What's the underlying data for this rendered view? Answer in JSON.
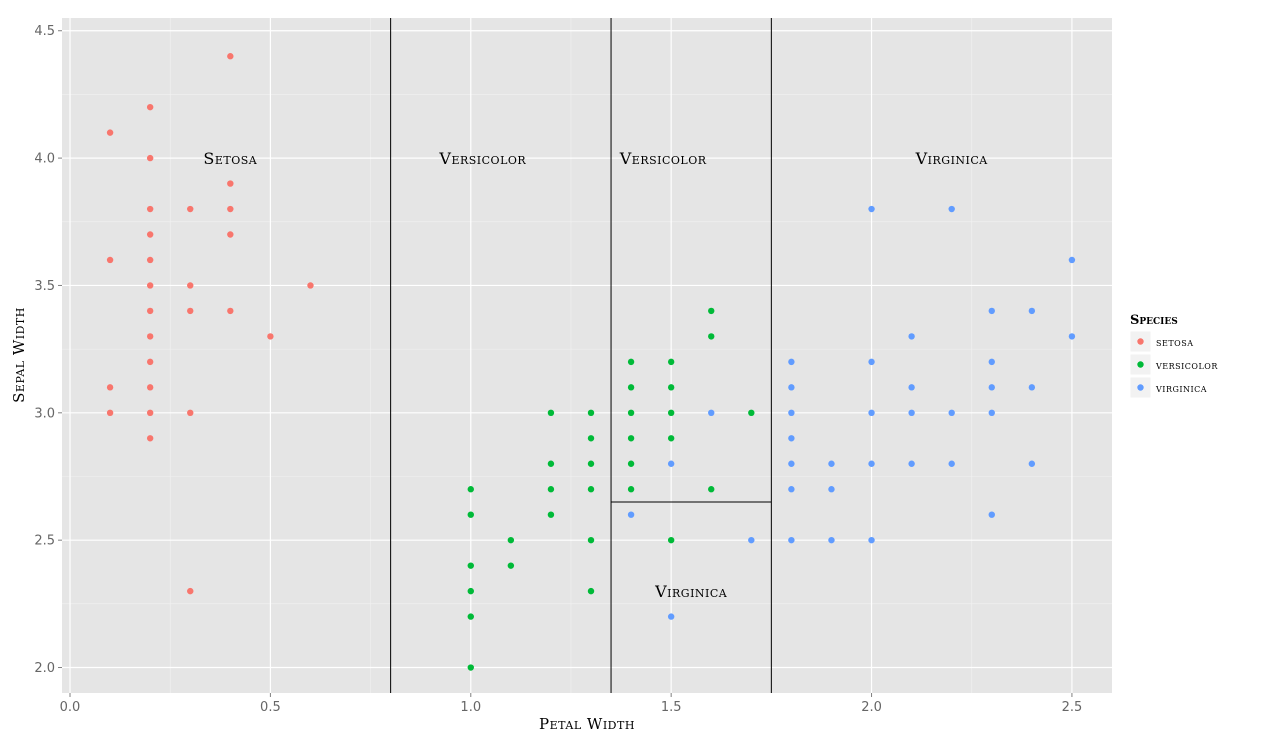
{
  "chart_data": {
    "type": "scatter",
    "xlabel": "Petal Width",
    "ylabel": "Sepal Width",
    "xlim": [
      -0.02,
      2.6
    ],
    "ylim": [
      1.9,
      4.55
    ],
    "x_ticks": [
      0.0,
      0.5,
      1.0,
      1.5,
      2.0,
      2.5
    ],
    "x_tick_labels": [
      "0.0",
      "0.5",
      "1.0",
      "1.5",
      "2.0",
      "2.5"
    ],
    "y_ticks": [
      2.0,
      2.5,
      3.0,
      3.5,
      4.0,
      4.5
    ],
    "y_tick_labels": [
      "2.0",
      "2.5",
      "3.0",
      "3.5",
      "4.0",
      "4.5"
    ],
    "grid": true,
    "background_color": "#E5E5E5",
    "legend": {
      "title": "Species",
      "position": "right",
      "entries": [
        {
          "label": "setosa",
          "color": "#F8766D"
        },
        {
          "label": "versicolor",
          "color": "#00BA38"
        },
        {
          "label": "virginica",
          "color": "#619CFF"
        }
      ]
    },
    "series": [
      {
        "name": "setosa",
        "color": "#F8766D",
        "points": [
          [
            0.4,
            4.4
          ],
          [
            0.2,
            4.2
          ],
          [
            0.1,
            4.1
          ],
          [
            0.2,
            4.0
          ],
          [
            0.4,
            3.9
          ],
          [
            0.2,
            3.8
          ],
          [
            0.3,
            3.8
          ],
          [
            0.4,
            3.8
          ],
          [
            0.2,
            3.7
          ],
          [
            0.4,
            3.7
          ],
          [
            0.1,
            3.6
          ],
          [
            0.2,
            3.6
          ],
          [
            0.2,
            3.5
          ],
          [
            0.3,
            3.5
          ],
          [
            0.6,
            3.5
          ],
          [
            0.2,
            3.4
          ],
          [
            0.3,
            3.4
          ],
          [
            0.4,
            3.4
          ],
          [
            0.2,
            3.3
          ],
          [
            0.5,
            3.3
          ],
          [
            0.2,
            3.2
          ],
          [
            0.1,
            3.1
          ],
          [
            0.2,
            3.1
          ],
          [
            0.1,
            3.0
          ],
          [
            0.2,
            3.0
          ],
          [
            0.3,
            3.0
          ],
          [
            0.2,
            2.9
          ],
          [
            0.3,
            2.3
          ]
        ]
      },
      {
        "name": "versicolor",
        "color": "#00BA38",
        "points": [
          [
            1.6,
            3.4
          ],
          [
            1.6,
            3.3
          ],
          [
            1.4,
            3.2
          ],
          [
            1.5,
            3.2
          ],
          [
            1.4,
            3.1
          ],
          [
            1.5,
            3.1
          ],
          [
            1.2,
            3.0
          ],
          [
            1.3,
            3.0
          ],
          [
            1.4,
            3.0
          ],
          [
            1.5,
            3.0
          ],
          [
            1.7,
            3.0
          ],
          [
            1.3,
            2.9
          ],
          [
            1.4,
            2.9
          ],
          [
            1.5,
            2.9
          ],
          [
            1.2,
            2.8
          ],
          [
            1.3,
            2.8
          ],
          [
            1.4,
            2.8
          ],
          [
            1.0,
            2.7
          ],
          [
            1.2,
            2.7
          ],
          [
            1.3,
            2.7
          ],
          [
            1.4,
            2.7
          ],
          [
            1.6,
            2.7
          ],
          [
            1.0,
            2.6
          ],
          [
            1.2,
            2.6
          ],
          [
            1.1,
            2.5
          ],
          [
            1.3,
            2.5
          ],
          [
            1.5,
            2.5
          ],
          [
            1.0,
            2.4
          ],
          [
            1.1,
            2.4
          ],
          [
            1.0,
            2.3
          ],
          [
            1.3,
            2.3
          ],
          [
            1.0,
            2.2
          ],
          [
            1.0,
            2.0
          ]
        ]
      },
      {
        "name": "virginica",
        "color": "#619CFF",
        "points": [
          [
            2.0,
            3.8
          ],
          [
            2.2,
            3.8
          ],
          [
            2.5,
            3.6
          ],
          [
            2.3,
            3.4
          ],
          [
            2.4,
            3.4
          ],
          [
            2.1,
            3.3
          ],
          [
            2.5,
            3.3
          ],
          [
            1.8,
            3.2
          ],
          [
            2.0,
            3.2
          ],
          [
            2.3,
            3.2
          ],
          [
            1.8,
            3.1
          ],
          [
            2.1,
            3.1
          ],
          [
            2.3,
            3.1
          ],
          [
            2.4,
            3.1
          ],
          [
            1.6,
            3.0
          ],
          [
            1.8,
            3.0
          ],
          [
            2.0,
            3.0
          ],
          [
            2.1,
            3.0
          ],
          [
            2.2,
            3.0
          ],
          [
            2.3,
            3.0
          ],
          [
            1.8,
            2.9
          ],
          [
            1.5,
            2.8
          ],
          [
            1.8,
            2.8
          ],
          [
            1.9,
            2.8
          ],
          [
            2.0,
            2.8
          ],
          [
            2.1,
            2.8
          ],
          [
            2.2,
            2.8
          ],
          [
            2.4,
            2.8
          ],
          [
            1.8,
            2.7
          ],
          [
            1.9,
            2.7
          ],
          [
            1.4,
            2.6
          ],
          [
            2.3,
            2.6
          ],
          [
            1.7,
            2.5
          ],
          [
            1.8,
            2.5
          ],
          [
            1.9,
            2.5
          ],
          [
            2.0,
            2.5
          ],
          [
            1.5,
            2.2
          ]
        ]
      }
    ],
    "partition_lines": [
      {
        "orientation": "vertical",
        "x": 0.8,
        "y_from": 1.9,
        "y_to": 4.55
      },
      {
        "orientation": "vertical",
        "x": 1.35,
        "y_from": 1.9,
        "y_to": 4.55
      },
      {
        "orientation": "vertical",
        "x": 1.75,
        "y_from": 1.9,
        "y_to": 4.55
      },
      {
        "orientation": "horizontal",
        "y": 2.65,
        "x_from": 1.35,
        "x_to": 1.75
      }
    ],
    "annotations": [
      {
        "text": "Setosa",
        "x": 0.4,
        "y": 4.0
      },
      {
        "text": "Versicolor",
        "x": 1.03,
        "y": 4.0
      },
      {
        "text": "Versicolor",
        "x": 1.48,
        "y": 4.0
      },
      {
        "text": "Virginica",
        "x": 2.2,
        "y": 4.0
      },
      {
        "text": "Virginica",
        "x": 1.55,
        "y": 2.3
      }
    ]
  }
}
